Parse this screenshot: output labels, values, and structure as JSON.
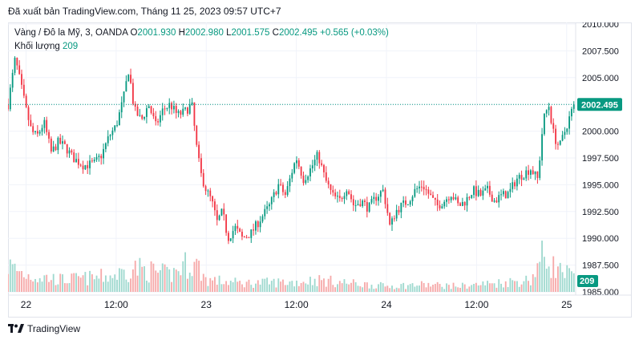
{
  "header": {
    "published": "Đã xuất bản TradingView.com, Tháng 11 25, 2023 09:57 UTC+7"
  },
  "legend": {
    "symbol": "Vàng / Đô la Mỹ, 3, OANDA",
    "o_label": "O",
    "o_value": "2001.930",
    "h_label": "H",
    "h_value": "2002.980",
    "l_label": "L",
    "l_value": "2001.575",
    "c_label": "C",
    "c_value": "2002.495",
    "change": "+0.565 (+0.03%)",
    "volume_label": "Khối lượng",
    "volume_value": "209"
  },
  "brand": {
    "name": "TradingView"
  },
  "colors": {
    "up": "#089981",
    "down": "#f23645",
    "vol_up": "#9fd9cf",
    "vol_down": "#f6a9a9",
    "grid": "#f0f3fa",
    "axis_text": "#131722",
    "price_line": "#089981"
  },
  "chart_data": {
    "type": "candlestick",
    "title": "Vàng / Đô la Mỹ, 3, OANDA",
    "ylim": [
      1985.0,
      2010.0
    ],
    "y_ticks": [
      "1985.000",
      "1987.500",
      "1990.000",
      "1992.500",
      "1995.000",
      "1997.500",
      "2000.000",
      "2002.500",
      "2005.000",
      "2007.500",
      "2010.000"
    ],
    "x_ticks": [
      "22",
      "12:00",
      "23",
      "12:00",
      "24",
      "12:00",
      "25"
    ],
    "x_tick_positions": [
      0,
      0.5,
      1,
      1.5,
      2,
      2.5,
      3
    ],
    "x_range_days": [
      -0.1,
      3.05
    ],
    "last_price": 2002.495,
    "last_price_label": "2002.495",
    "last_volume_label": "209",
    "volume_max": 1200,
    "price_path": [
      [
        -0.1,
        2002.5
      ],
      [
        -0.06,
        2006.8
      ],
      [
        0.0,
        2002.0
      ],
      [
        0.03,
        2000.0
      ],
      [
        0.06,
        1999.5
      ],
      [
        0.1,
        2000.8
      ],
      [
        0.14,
        1998.0
      ],
      [
        0.18,
        1999.0
      ],
      [
        0.22,
        1998.5
      ],
      [
        0.26,
        1997.5
      ],
      [
        0.32,
        1996.8
      ],
      [
        0.38,
        1997.0
      ],
      [
        0.42,
        1997.8
      ],
      [
        0.46,
        1999.5
      ],
      [
        0.5,
        2000.5
      ],
      [
        0.54,
        2003.0
      ],
      [
        0.57,
        2005.8
      ],
      [
        0.6,
        2002.0
      ],
      [
        0.64,
        2001.0
      ],
      [
        0.68,
        2002.5
      ],
      [
        0.72,
        2000.5
      ],
      [
        0.76,
        2002.0
      ],
      [
        0.8,
        2002.5
      ],
      [
        0.84,
        2001.5
      ],
      [
        0.88,
        2001.8
      ],
      [
        0.92,
        2002.5
      ],
      [
        0.95,
        1998.0
      ],
      [
        0.97,
        1996.0
      ],
      [
        1.0,
        1994.5
      ],
      [
        1.03,
        1993.5
      ],
      [
        1.06,
        1991.5
      ],
      [
        1.09,
        1992.5
      ],
      [
        1.12,
        1990.0
      ],
      [
        1.16,
        1991.0
      ],
      [
        1.2,
        1990.0
      ],
      [
        1.25,
        1990.5
      ],
      [
        1.3,
        1991.8
      ],
      [
        1.35,
        1993.0
      ],
      [
        1.4,
        1995.0
      ],
      [
        1.44,
        1994.0
      ],
      [
        1.48,
        1996.5
      ],
      [
        1.5,
        1997.5
      ],
      [
        1.54,
        1995.5
      ],
      [
        1.58,
        1996.5
      ],
      [
        1.62,
        1997.8
      ],
      [
        1.66,
        1995.5
      ],
      [
        1.7,
        1994.0
      ],
      [
        1.74,
        1993.5
      ],
      [
        1.78,
        1994.8
      ],
      [
        1.82,
        1993.0
      ],
      [
        1.86,
        1993.5
      ],
      [
        1.9,
        1992.8
      ],
      [
        1.94,
        1993.8
      ],
      [
        1.98,
        1994.5
      ],
      [
        2.0,
        1993.0
      ],
      [
        2.02,
        1991.0
      ],
      [
        2.05,
        1992.5
      ],
      [
        2.08,
        1993.0
      ],
      [
        2.12,
        1993.5
      ],
      [
        2.16,
        1994.5
      ],
      [
        2.2,
        1995.0
      ],
      [
        2.24,
        1994.0
      ],
      [
        2.28,
        1993.0
      ],
      [
        2.32,
        1993.5
      ],
      [
        2.36,
        1994.2
      ],
      [
        2.4,
        1993.0
      ],
      [
        2.44,
        1993.5
      ],
      [
        2.48,
        1994.5
      ],
      [
        2.52,
        1994.0
      ],
      [
        2.56,
        1994.5
      ],
      [
        2.6,
        1993.5
      ],
      [
        2.64,
        1994.0
      ],
      [
        2.68,
        1994.2
      ],
      [
        2.72,
        1995.5
      ],
      [
        2.76,
        1996.0
      ],
      [
        2.8,
        1996.5
      ],
      [
        2.84,
        1995.5
      ],
      [
        2.87,
        2001.0
      ],
      [
        2.9,
        2002.5
      ],
      [
        2.93,
        1999.5
      ],
      [
        2.96,
        1998.5
      ],
      [
        2.99,
        2000.0
      ],
      [
        3.02,
        2001.5
      ],
      [
        3.04,
        2002.495
      ]
    ],
    "volume_profile": [
      [
        -0.1,
        0.55
      ],
      [
        0.0,
        0.35
      ],
      [
        0.2,
        0.25
      ],
      [
        0.4,
        0.3
      ],
      [
        0.5,
        0.35
      ],
      [
        0.6,
        0.5
      ],
      [
        0.8,
        0.35
      ],
      [
        0.9,
        0.6
      ],
      [
        0.95,
        0.55
      ],
      [
        1.0,
        0.25
      ],
      [
        1.2,
        0.18
      ],
      [
        1.4,
        0.2
      ],
      [
        1.5,
        0.2
      ],
      [
        1.6,
        0.25
      ],
      [
        1.8,
        0.18
      ],
      [
        2.0,
        0.12
      ],
      [
        2.2,
        0.15
      ],
      [
        2.4,
        0.12
      ],
      [
        2.6,
        0.18
      ],
      [
        2.8,
        0.25
      ],
      [
        2.87,
        0.75
      ],
      [
        2.95,
        0.45
      ],
      [
        3.05,
        0.3
      ]
    ]
  }
}
